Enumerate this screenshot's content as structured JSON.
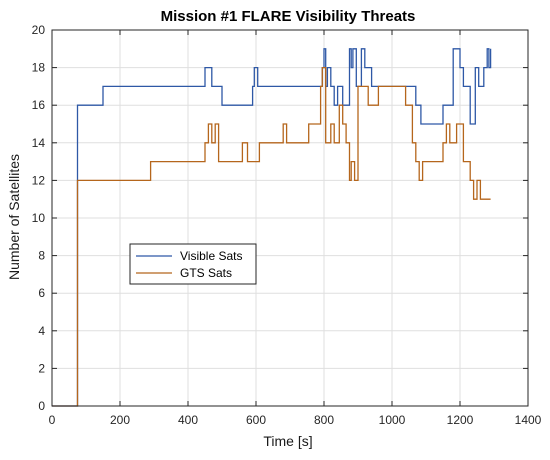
{
  "chart_data": {
    "type": "line",
    "title": "Mission #1 FLARE Visibility Threats",
    "xlabel": "Time [s]",
    "ylabel": "Number of Satellites",
    "xlim": [
      0,
      1400
    ],
    "ylim": [
      0,
      20
    ],
    "xticks": [
      0,
      200,
      400,
      600,
      800,
      1000,
      1200,
      1400
    ],
    "yticks": [
      0,
      2,
      4,
      6,
      8,
      10,
      12,
      14,
      16,
      18,
      20
    ],
    "grid": true,
    "step": true,
    "legend": {
      "position": "center-left",
      "entries": [
        "Visible Sats",
        "GTS Sats"
      ]
    },
    "series": [
      {
        "name": "Visible Sats",
        "color": "#2e58a6",
        "x": [
          0,
          75,
          150,
          450,
          470,
          500,
          590,
          595,
          605,
          795,
          800,
          805,
          810,
          820,
          830,
          840,
          855,
          875,
          880,
          885,
          895,
          910,
          920,
          940,
          960,
          1070,
          1085,
          1150,
          1180,
          1200,
          1210,
          1230,
          1245,
          1255,
          1270,
          1280,
          1285,
          1290
        ],
        "y": [
          0,
          16,
          17,
          18,
          17,
          16,
          17,
          18,
          17,
          18,
          19,
          17,
          18,
          17,
          16,
          17,
          16,
          19,
          18,
          19,
          17,
          19,
          18,
          17,
          17,
          16,
          15,
          16,
          19,
          18,
          17,
          15,
          18,
          17,
          18,
          19,
          18,
          19
        ]
      },
      {
        "name": "GTS Sats",
        "color": "#b5661c",
        "x": [
          0,
          75,
          290,
          450,
          460,
          470,
          480,
          490,
          560,
          575,
          610,
          680,
          690,
          720,
          755,
          790,
          795,
          805,
          820,
          830,
          845,
          855,
          865,
          875,
          880,
          890,
          900,
          930,
          960,
          1000,
          1040,
          1060,
          1070,
          1080,
          1090,
          1150,
          1160,
          1170,
          1190,
          1210,
          1230,
          1240,
          1250,
          1260,
          1290
        ],
        "y": [
          0,
          12,
          13,
          14,
          15,
          14,
          15,
          13,
          14,
          13,
          14,
          15,
          14,
          14,
          15,
          17,
          18,
          14,
          15,
          14,
          16,
          15,
          14,
          12,
          13,
          12,
          17,
          16,
          17,
          17,
          16,
          14,
          13,
          12,
          13,
          14,
          15,
          14,
          15,
          13,
          12,
          11,
          12,
          11,
          11
        ]
      }
    ]
  }
}
